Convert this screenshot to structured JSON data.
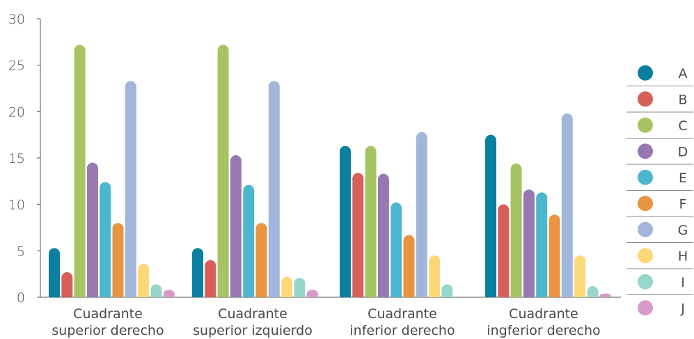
{
  "chart_data": {
    "type": "bar",
    "ylim": [
      0,
      30
    ],
    "yticks": [
      0,
      5,
      10,
      15,
      20,
      25,
      30
    ],
    "categories": [
      [
        "Cuadrante",
        "superior derecho"
      ],
      [
        "Cuadrante",
        "superior izquierdo"
      ],
      [
        "Cuadrante",
        "inferior derecho"
      ],
      [
        "Cuadrante",
        "ingferior derecho"
      ]
    ],
    "legend_position": "right",
    "series": [
      {
        "name": "A",
        "color": "#0b7fa0",
        "values": [
          5.3,
          5.3,
          16.3,
          17.5
        ]
      },
      {
        "name": "B",
        "color": "#d65f5a",
        "values": [
          2.7,
          4.0,
          13.4,
          10.0
        ]
      },
      {
        "name": "C",
        "color": "#a6c462",
        "values": [
          27.2,
          27.2,
          16.3,
          14.4
        ]
      },
      {
        "name": "D",
        "color": "#9878b3",
        "values": [
          14.5,
          15.3,
          13.3,
          11.6
        ]
      },
      {
        "name": "E",
        "color": "#4cb6cf",
        "values": [
          12.4,
          12.1,
          10.2,
          11.3
        ]
      },
      {
        "name": "F",
        "color": "#e99440",
        "values": [
          8.0,
          8.0,
          6.7,
          8.9
        ]
      },
      {
        "name": "G",
        "color": "#a2b6db",
        "values": [
          23.3,
          23.3,
          17.8,
          19.8
        ]
      },
      {
        "name": "H",
        "color": "#fcd878",
        "values": [
          3.6,
          2.2,
          4.5,
          4.5
        ]
      },
      {
        "name": "I",
        "color": "#98d6cc",
        "values": [
          1.4,
          2.1,
          1.4,
          1.2
        ]
      },
      {
        "name": "J",
        "color": "#d69bc7",
        "values": [
          0.8,
          0.8,
          0.0,
          0.4
        ]
      }
    ]
  }
}
